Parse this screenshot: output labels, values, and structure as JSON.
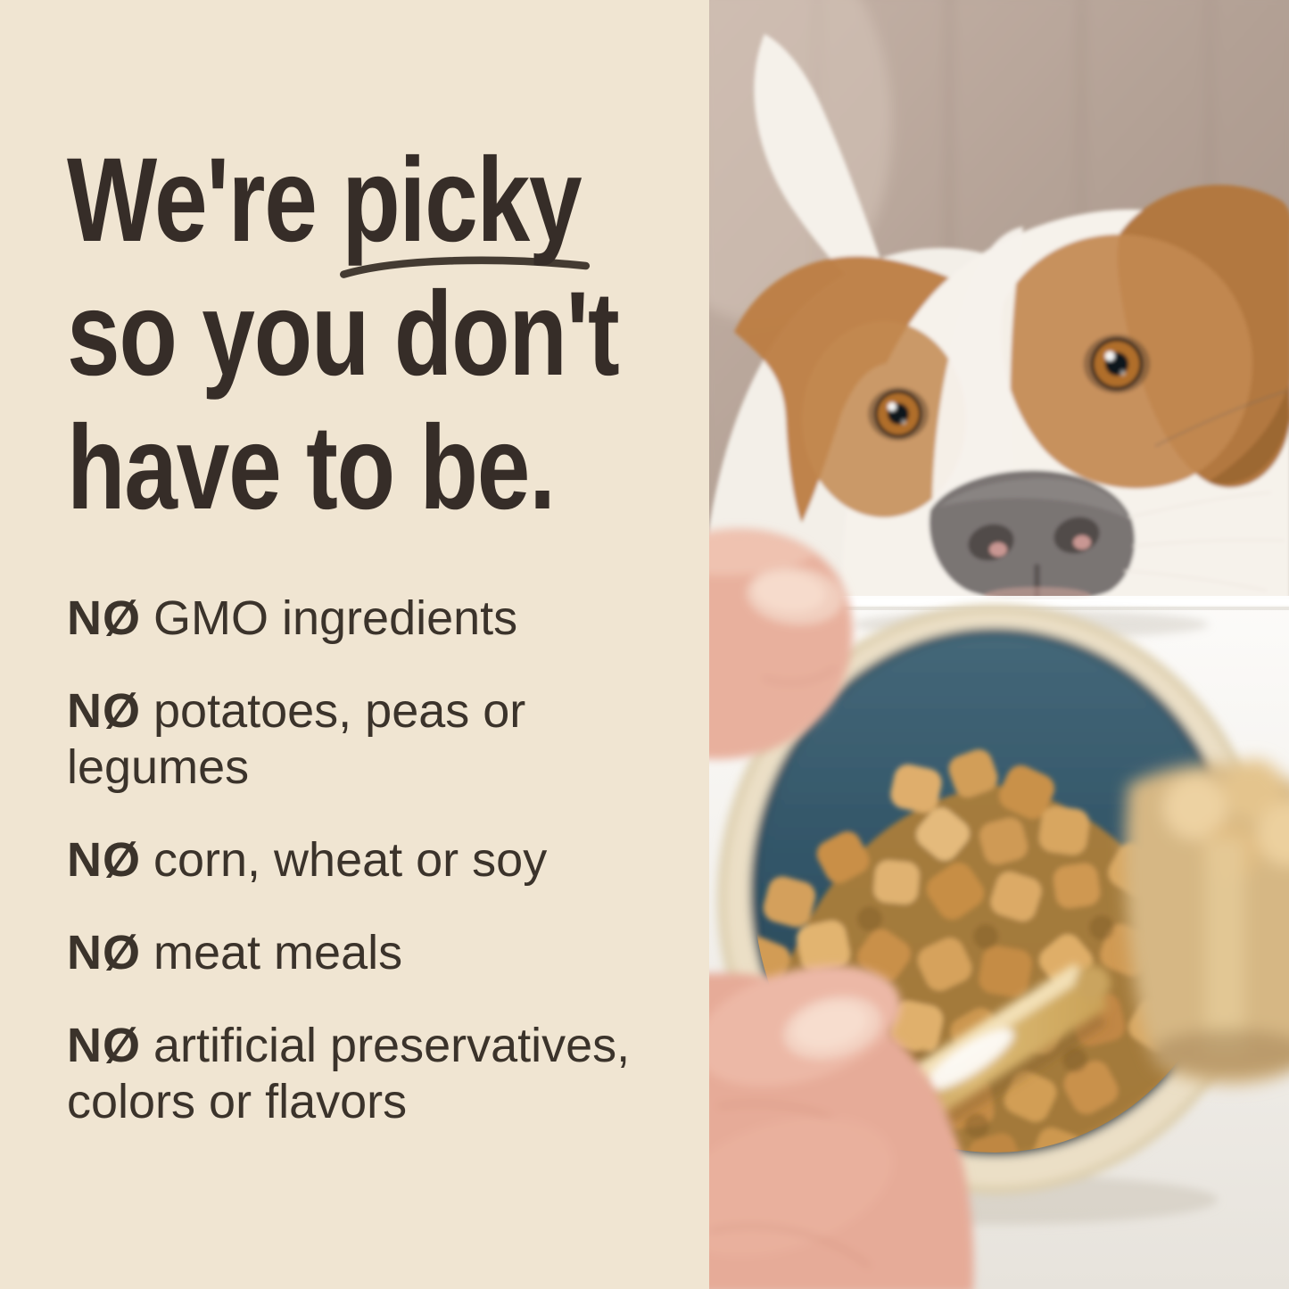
{
  "headline": {
    "line1_before": "We're ",
    "line1_underlined": "picky",
    "line2": "so you don't",
    "line3": "have to be."
  },
  "bullets": {
    "items": [
      {
        "prefix": "NØ",
        "lines": [
          "GMO ingredients"
        ]
      },
      {
        "prefix": "NØ",
        "lines": [
          "potatoes, peas or",
          "legumes"
        ]
      },
      {
        "prefix": "NØ",
        "lines": [
          "corn, wheat or soy"
        ]
      },
      {
        "prefix": "NØ",
        "lines": [
          "meat meals"
        ]
      },
      {
        "prefix": "NØ",
        "lines": [
          "artificial preservatives,",
          "colors or flavors"
        ]
      }
    ]
  },
  "colors": {
    "page_background": "#f0e5d2",
    "headline_text": "#362d28",
    "body_text": "#3b332b",
    "underline": "#3a3129",
    "wood_background": "#b2a094",
    "dog_white": "#f6f2eb",
    "dog_tan": "#bc7e45",
    "table_white": "#f9f7f4",
    "bowl_rim_cream": "#ebdfc6",
    "bowl_teal": "#2f5265",
    "kibble_tan": "#d4a05b",
    "scoop_gold": "#d8b261",
    "hand_skin": "#e8b09d"
  }
}
